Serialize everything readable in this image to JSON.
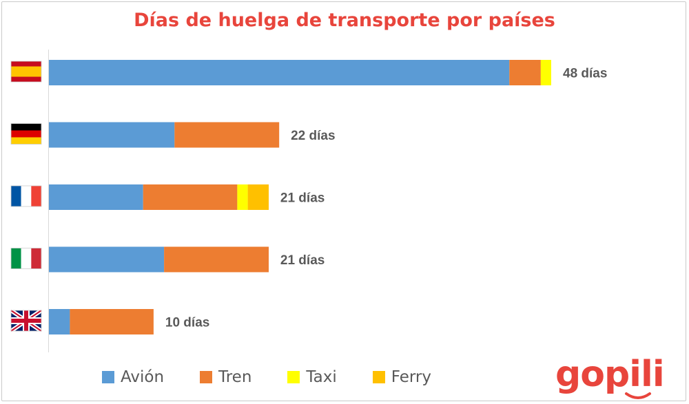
{
  "chart_data": {
    "type": "bar",
    "orientation": "horizontal",
    "stacked": true,
    "title": "Días de huelga de transporte por países",
    "categories": [
      "España",
      "Alemania",
      "Francia",
      "Italia",
      "Reino Unido"
    ],
    "flags": [
      "spain-flag",
      "germany-flag",
      "france-flag",
      "italy-flag",
      "uk-flag"
    ],
    "series": [
      {
        "name": "Avión",
        "color": "#5b9bd5",
        "values": [
          44,
          12,
          9,
          11,
          2
        ]
      },
      {
        "name": "Tren",
        "color": "#ed7d31",
        "values": [
          3,
          10,
          9,
          10,
          8
        ]
      },
      {
        "name": "Taxi",
        "color": "#ffff00",
        "values": [
          1,
          0,
          1,
          0,
          0
        ]
      },
      {
        "name": "Ferry",
        "color": "#ffc000",
        "values": [
          0,
          0,
          2,
          0,
          0
        ]
      }
    ],
    "total_labels": [
      "48 días",
      "22 días",
      "21 días",
      "21 días",
      "10 días"
    ],
    "xlim": [
      0,
      48
    ],
    "grid": false,
    "legend_position": "bottom"
  },
  "brand": {
    "logo_text": "gopili",
    "color": "#e8453c"
  }
}
